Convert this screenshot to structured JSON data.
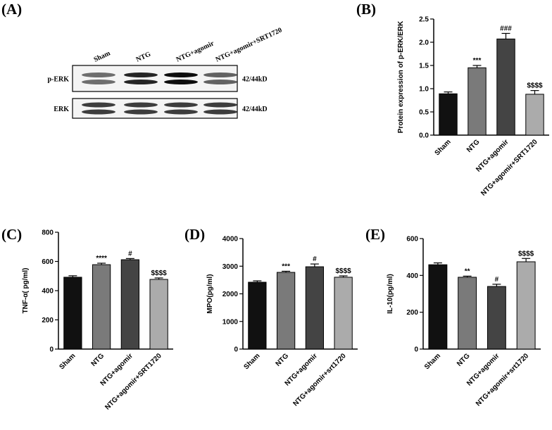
{
  "chart_data": [
    {
      "type": "blot",
      "panel_label": "(A)",
      "lanes": [
        "Sham",
        "NTG",
        "NTG+agomir",
        "NTG+agomir+SRT1720"
      ],
      "rows": [
        {
          "name": "p-ERK",
          "size": "42/44kD"
        },
        {
          "name": "ERK",
          "size": "42/44kD"
        }
      ]
    },
    {
      "type": "bar",
      "panel_label": "(B)",
      "y_label": "Protein expression of p-ERK/ERK",
      "categories": [
        "Sham",
        "NTG",
        "NTG+agomir",
        "NTG+agomir+SRT1720"
      ],
      "values": [
        0.89,
        1.45,
        2.07,
        0.88
      ],
      "errors": [
        0.04,
        0.05,
        0.12,
        0.08
      ],
      "annotations": [
        null,
        "***",
        "###",
        "$$$$"
      ],
      "colors": [
        "#111111",
        "#7a7a7a",
        "#444444",
        "#ababab"
      ],
      "ylim": [
        0,
        2.5
      ],
      "yticks": [
        {
          "value": 0,
          "label": "0.0"
        },
        0.5,
        {
          "value": 1,
          "label": "1.0"
        },
        1.5,
        {
          "value": 2,
          "label": "2.0"
        },
        2.5
      ]
    },
    {
      "type": "bar",
      "panel_label": "(C)",
      "y_label": "TNF-α( pg/ml)",
      "categories": [
        "Sham",
        "NTG",
        "NTG+agomir",
        "NTG+agomir+SRT1720"
      ],
      "values": [
        492,
        578,
        612,
        477
      ],
      "errors": [
        10,
        10,
        8,
        10
      ],
      "annotations": [
        null,
        "****",
        "#",
        "$$$$"
      ],
      "colors": [
        "#111111",
        "#7a7a7a",
        "#444444",
        "#ababab"
      ],
      "ylim": [
        0,
        800
      ],
      "yticks": [
        0,
        200,
        400,
        600,
        800
      ]
    },
    {
      "type": "bar",
      "panel_label": "(D)",
      "y_label": "MPO(pg/ml)",
      "categories": [
        "Sham",
        "NTG",
        "NTG+agomir",
        "NTG+agomir+srt1720"
      ],
      "values": [
        2420,
        2777,
        2980,
        2600
      ],
      "errors": [
        50,
        40,
        100,
        50
      ],
      "annotations": [
        null,
        "***",
        "#",
        "$$$$"
      ],
      "colors": [
        "#111111",
        "#7a7a7a",
        "#444444",
        "#ababab"
      ],
      "ylim": [
        0,
        4000
      ],
      "yticks": [
        0,
        1000,
        2000,
        3000,
        4000
      ]
    },
    {
      "type": "bar",
      "panel_label": "(E)",
      "y_label": "IL-10(pg/ml)",
      "categories": [
        "Sham",
        "NTG",
        "NTG+agomir",
        "NTG+agomir+srt1720"
      ],
      "values": [
        458,
        390,
        340,
        474
      ],
      "errors": [
        10,
        6,
        12,
        18
      ],
      "annotations": [
        null,
        "**",
        "#",
        "$$$$"
      ],
      "colors": [
        "#111111",
        "#7a7a7a",
        "#444444",
        "#ababab"
      ],
      "ylim": [
        0,
        600
      ],
      "yticks": [
        0,
        200,
        400,
        600
      ]
    }
  ]
}
